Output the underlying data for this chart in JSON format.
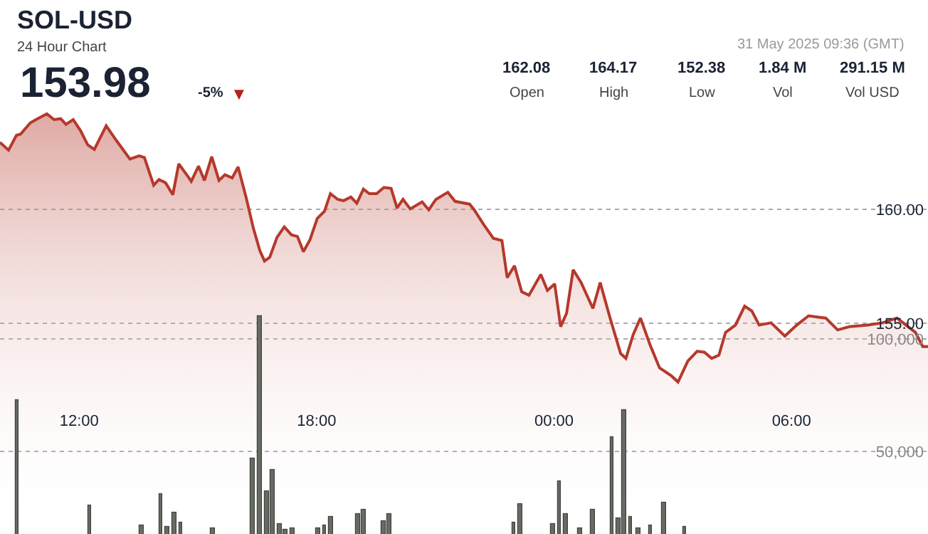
{
  "chart_data": {
    "type": "area",
    "title": "SOL-USD",
    "subtitle": "24 Hour Chart",
    "annotations": [
      "153.98",
      "-5%",
      "▼",
      "162.08",
      "Open",
      "164.17",
      "High",
      "152.38",
      "Low",
      "1.84 M",
      "Vol",
      "291.15 M",
      "Vol USD",
      "31 May 2025 09:36 (GMT)"
    ],
    "xlim": [
      "2025-05-30T10:00",
      "2025-05-31T09:27"
    ],
    "xticks": [
      {
        "value": "2025-05-30T12:00",
        "label": "12:00"
      },
      {
        "value": "2025-05-30T18:00",
        "label": "18:00"
      },
      {
        "value": "2025-05-31T00:00",
        "label": "00:00"
      },
      {
        "value": "2025-05-31T06:00",
        "label": "06:00"
      }
    ],
    "ylim": [
      145.75,
      169.19
    ],
    "yticks": [
      {
        "value": 155,
        "label": "155.00"
      },
      {
        "value": 160,
        "label": "160.00"
      }
    ],
    "y2lim": [
      13290,
      250630
    ],
    "y2ticks": [
      {
        "value": 50000,
        "label": "50,000"
      },
      {
        "value": 100000,
        "label": "100,000"
      }
    ],
    "grid": "y",
    "series": [
      {
        "color": "#b5392c",
        "x": [
          "2025-05-30T10:00",
          "2025-05-30T10:13",
          "2025-05-30T10:25",
          "2025-05-30T10:31",
          "2025-05-30T10:46",
          "2025-05-30T10:57",
          "2025-05-30T11:11",
          "2025-05-30T11:22",
          "2025-05-30T11:32",
          "2025-05-30T11:40",
          "2025-05-30T11:51",
          "2025-05-30T12:02",
          "2025-05-30T12:13",
          "2025-05-30T12:23",
          "2025-05-30T12:41",
          "2025-05-30T12:56",
          "2025-05-30T13:17",
          "2025-05-30T13:31",
          "2025-05-30T13:39",
          "2025-05-30T13:53",
          "2025-05-30T14:01",
          "2025-05-30T14:11",
          "2025-05-30T14:22",
          "2025-05-30T14:31",
          "2025-05-30T14:44",
          "2025-05-30T14:50",
          "2025-05-30T15:01",
          "2025-05-30T15:10",
          "2025-05-30T15:21",
          "2025-05-30T15:32",
          "2025-05-30T15:41",
          "2025-05-30T15:52",
          "2025-05-30T16:01",
          "2025-05-30T16:13",
          "2025-05-30T16:24",
          "2025-05-30T16:34",
          "2025-05-30T16:41",
          "2025-05-30T16:49",
          "2025-05-30T17:00",
          "2025-05-30T17:11",
          "2025-05-30T17:22",
          "2025-05-30T17:31",
          "2025-05-30T17:40",
          "2025-05-30T17:50",
          "2025-05-30T18:01",
          "2025-05-30T18:12",
          "2025-05-30T18:21",
          "2025-05-30T18:32",
          "2025-05-30T18:41",
          "2025-05-30T18:52",
          "2025-05-30T19:01",
          "2025-05-30T19:11",
          "2025-05-30T19:20",
          "2025-05-30T19:31",
          "2025-05-30T19:42",
          "2025-05-30T19:53",
          "2025-05-30T20:02",
          "2025-05-30T20:11",
          "2025-05-30T20:22",
          "2025-05-30T20:40",
          "2025-05-30T20:50",
          "2025-05-30T21:01",
          "2025-05-30T21:19",
          "2025-05-30T21:30",
          "2025-05-30T21:52",
          "2025-05-30T21:59",
          "2025-05-30T22:13",
          "2025-05-30T22:28",
          "2025-05-30T22:41",
          "2025-05-30T22:49",
          "2025-05-30T23:00",
          "2025-05-30T23:11",
          "2025-05-30T23:22",
          "2025-05-30T23:40",
          "2025-05-30T23:50",
          "2025-05-31T00:01",
          "2025-05-31T00:10",
          "2025-05-31T00:19",
          "2025-05-31T00:29",
          "2025-05-31T00:41",
          "2025-05-31T00:59",
          "2025-05-31T01:10",
          "2025-05-31T01:24",
          "2025-05-31T01:41",
          "2025-05-31T01:49",
          "2025-05-31T02:00",
          "2025-05-31T02:11",
          "2025-05-31T02:26",
          "2025-05-31T02:40",
          "2025-05-31T02:58",
          "2025-05-31T03:08",
          "2025-05-31T03:23",
          "2025-05-31T03:37",
          "2025-05-31T03:48",
          "2025-05-31T03:59",
          "2025-05-31T04:10",
          "2025-05-31T04:20",
          "2025-05-31T04:35",
          "2025-05-31T04:49",
          "2025-05-31T05:00",
          "2025-05-31T05:11",
          "2025-05-31T05:29",
          "2025-05-31T05:50",
          "2025-05-31T06:08",
          "2025-05-31T06:26",
          "2025-05-31T06:41",
          "2025-05-31T06:52",
          "2025-05-31T07:10",
          "2025-05-31T07:28",
          "2025-05-31T07:56",
          "2025-05-31T08:18",
          "2025-05-31T08:40",
          "2025-05-31T09:08",
          "2025-05-31T09:19",
          "2025-05-31T09:27"
        ],
        "values": [
          162.94,
          162.6,
          163.25,
          163.3,
          163.8,
          163.98,
          164.19,
          163.94,
          163.98,
          163.73,
          163.94,
          163.46,
          162.83,
          162.63,
          163.67,
          163.04,
          162.21,
          162.35,
          162.27,
          161.06,
          161.31,
          161.17,
          160.64,
          162.0,
          161.48,
          161.23,
          161.9,
          161.27,
          162.31,
          161.27,
          161.52,
          161.38,
          161.86,
          160.54,
          159.19,
          158.19,
          157.73,
          157.9,
          158.77,
          159.23,
          158.88,
          158.81,
          158.14,
          158.67,
          159.6,
          159.92,
          160.69,
          160.44,
          160.38,
          160.54,
          160.27,
          160.89,
          160.69,
          160.69,
          160.96,
          160.92,
          160.06,
          160.44,
          160.02,
          160.33,
          159.98,
          160.44,
          160.75,
          160.35,
          160.23,
          159.98,
          159.35,
          158.73,
          158.63,
          157.0,
          157.52,
          156.38,
          156.23,
          157.14,
          156.44,
          156.73,
          154.85,
          155.44,
          157.35,
          156.79,
          155.65,
          156.79,
          155.33,
          153.67,
          153.46,
          154.5,
          155.23,
          154.02,
          153.04,
          152.69,
          152.42,
          153.35,
          153.77,
          153.73,
          153.46,
          153.6,
          154.6,
          154.92,
          155.75,
          155.54,
          154.92,
          155.02,
          154.44,
          154.92,
          155.33,
          155.27,
          155.23,
          154.71,
          154.85,
          154.92,
          155.02,
          155.23,
          154.6,
          153.98,
          153.98
        ]
      },
      {
        "type": "bar",
        "axis": "y2",
        "color": "#666b63",
        "x": [
          "2025-05-30T10:26",
          "2025-05-30T12:16",
          "2025-05-30T13:35",
          "2025-05-30T14:04",
          "2025-05-30T14:14",
          "2025-05-30T14:24",
          "2025-05-30T14:34",
          "2025-05-30T15:23",
          "2025-05-30T16:23",
          "2025-05-30T16:33",
          "2025-05-30T16:44",
          "2025-05-30T16:53",
          "2025-05-30T17:04",
          "2025-05-30T17:13",
          "2025-05-30T17:23",
          "2025-05-30T18:03",
          "2025-05-30T18:12",
          "2025-05-30T18:22",
          "2025-05-30T19:03",
          "2025-05-30T19:12",
          "2025-05-30T19:41",
          "2025-05-30T19:51",
          "2025-05-30T22:59",
          "2025-05-30T23:09",
          "2025-05-30T23:58",
          "2025-05-31T00:08",
          "2025-05-31T00:18",
          "2025-05-31T00:39",
          "2025-05-31T00:59",
          "2025-05-31T01:28",
          "2025-05-31T01:37",
          "2025-05-31T01:47",
          "2025-05-31T01:56",
          "2025-05-31T02:07",
          "2025-05-31T02:26",
          "2025-05-31T02:47",
          "2025-05-31T03:18"
        ],
        "values": [
          73000,
          26000,
          17000,
          31000,
          16500,
          23000,
          18500,
          16000,
          47000,
          110000,
          32000,
          42000,
          18000,
          15500,
          16000,
          16000,
          17000,
          21000,
          22000,
          24000,
          19000,
          22000,
          18500,
          26500,
          17500,
          37000,
          22000,
          16000,
          24000,
          56500,
          20000,
          68500,
          21000,
          16000,
          17000,
          27000,
          16500
        ]
      }
    ]
  }
}
